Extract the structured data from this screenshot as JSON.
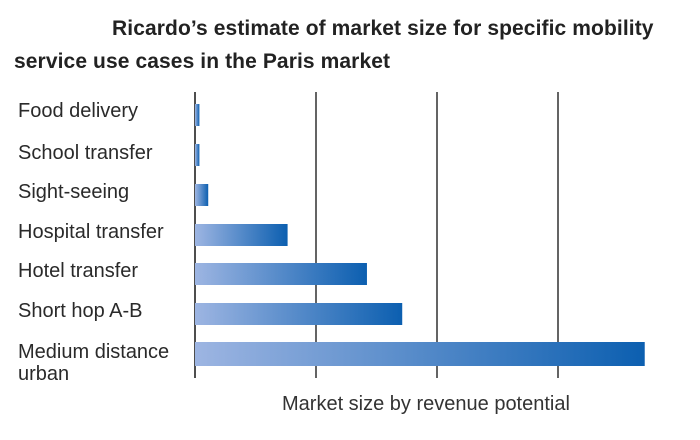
{
  "chart_data": {
    "type": "bar",
    "orientation": "horizontal",
    "title": "Ricardo’s estimate of market size for specific mobility service use cases in the Paris market",
    "xlabel": "Market size by revenue potential",
    "ylabel": "",
    "categories": [
      "Food delivery",
      "School transfer",
      "Sight-seeing",
      "Hospital transfer",
      "Hotel transfer",
      "Short hop A-B",
      "Medium distance urban"
    ],
    "values": [
      1,
      1,
      3,
      21,
      39,
      47,
      102
    ],
    "xlim": [
      0,
      110
    ],
    "x_ticks_labeled": false,
    "grid": "vertical",
    "bar_gradient": [
      "#9db5e2",
      "#0c5fb0"
    ]
  }
}
